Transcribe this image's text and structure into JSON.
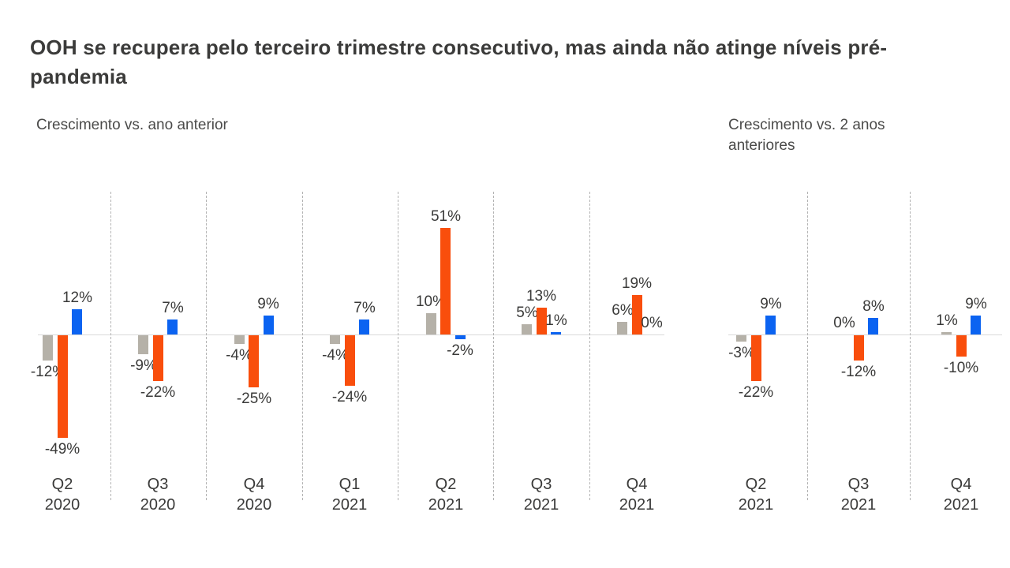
{
  "title": "OOH se recupera pelo terceiro trimestre consecutivo, mas ainda não atinge níveis pré-pandemia",
  "colors": {
    "gray_bar": "#b5b1a8",
    "orange_bar": "#f94e0c",
    "blue_bar": "#0b63f1",
    "axis_line": "#d9d9d9",
    "separator_line": "#b3b3b3",
    "text": "#3a3a39"
  },
  "chart_data": [
    {
      "type": "bar",
      "title": "Crescimento vs. ano anterior",
      "unit": "%",
      "categories": [
        "Q2 2020",
        "Q3 2020",
        "Q4 2020",
        "Q1 2021",
        "Q2 2021",
        "Q3 2021",
        "Q4 2021"
      ],
      "series": [
        {
          "name": "series_gray",
          "color": "#b5b1a8",
          "values": [
            -12,
            -9,
            -4,
            -4,
            10,
            5,
            6
          ]
        },
        {
          "name": "series_orange",
          "color": "#f94e0c",
          "values": [
            -49,
            -22,
            -25,
            -24,
            51,
            13,
            19
          ]
        },
        {
          "name": "series_blue",
          "color": "#0b63f1",
          "values": [
            12,
            7,
            9,
            7,
            -2,
            1,
            0
          ]
        }
      ],
      "legend": "none",
      "grid": "dashed vertical separators between categories",
      "baseline": 0
    },
    {
      "type": "bar",
      "title": "Crescimento vs. 2 anos anteriores",
      "unit": "%",
      "categories": [
        "Q2 2021",
        "Q3 2021",
        "Q4 2021"
      ],
      "series": [
        {
          "name": "series_gray",
          "color": "#b5b1a8",
          "values": [
            -3,
            0,
            1
          ]
        },
        {
          "name": "series_orange",
          "color": "#f94e0c",
          "values": [
            -22,
            -12,
            -10
          ]
        },
        {
          "name": "series_blue",
          "color": "#0b63f1",
          "values": [
            9,
            8,
            9
          ]
        }
      ],
      "legend": "none",
      "grid": "dashed vertical separators between categories",
      "baseline": 0
    }
  ]
}
